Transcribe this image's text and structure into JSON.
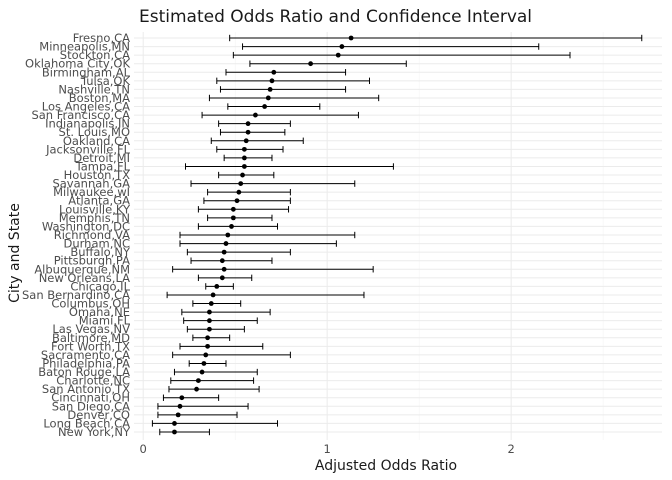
{
  "chart_data": {
    "type": "scatter",
    "title": "Estimated Odds Ratio and Confidence Interval",
    "xlabel": "Adjusted Odds Ratio",
    "ylabel": "City and State",
    "xlim": [
      -0.05,
      2.82
    ],
    "xticks": [
      0,
      1,
      2
    ],
    "xtick_labels": [
      "0",
      "1",
      "2"
    ],
    "grid": true,
    "points": [
      {
        "city": "Fresno,CA",
        "or": 1.13,
        "low": 0.47,
        "high": 2.71
      },
      {
        "city": "Minneapolis,MN",
        "or": 1.08,
        "low": 0.54,
        "high": 2.15
      },
      {
        "city": "Stockton,CA",
        "or": 1.06,
        "low": 0.49,
        "high": 2.32
      },
      {
        "city": "Oklahoma City,OK",
        "or": 0.91,
        "low": 0.58,
        "high": 1.43
      },
      {
        "city": "Birmingham,AL",
        "or": 0.71,
        "low": 0.45,
        "high": 1.1
      },
      {
        "city": "Tulsa,OK",
        "or": 0.7,
        "low": 0.4,
        "high": 1.23
      },
      {
        "city": "Nashville,TN",
        "or": 0.69,
        "low": 0.42,
        "high": 1.1
      },
      {
        "city": "Boston,MA",
        "or": 0.68,
        "low": 0.36,
        "high": 1.28
      },
      {
        "city": "Los Angeles,CA",
        "or": 0.66,
        "low": 0.46,
        "high": 0.96
      },
      {
        "city": "San Francisco,CA",
        "or": 0.61,
        "low": 0.32,
        "high": 1.17
      },
      {
        "city": "Indianapolis,IN",
        "or": 0.57,
        "low": 0.41,
        "high": 0.8
      },
      {
        "city": "St. Louis,MO",
        "or": 0.57,
        "low": 0.42,
        "high": 0.77
      },
      {
        "city": "Oakland,CA",
        "or": 0.56,
        "low": 0.37,
        "high": 0.87
      },
      {
        "city": "Jacksonville,FL",
        "or": 0.55,
        "low": 0.4,
        "high": 0.76
      },
      {
        "city": "Detroit,MI",
        "or": 0.55,
        "low": 0.44,
        "high": 0.7
      },
      {
        "city": "Tampa,FL",
        "or": 0.55,
        "low": 0.23,
        "high": 1.36
      },
      {
        "city": "Houston,TX",
        "or": 0.54,
        "low": 0.41,
        "high": 0.71
      },
      {
        "city": "Savannah,GA",
        "or": 0.53,
        "low": 0.26,
        "high": 1.15
      },
      {
        "city": "Milwaukee,wI",
        "or": 0.52,
        "low": 0.35,
        "high": 0.8
      },
      {
        "city": "Atlanta,GA",
        "or": 0.51,
        "low": 0.33,
        "high": 0.8
      },
      {
        "city": "Louisville,KY",
        "or": 0.49,
        "low": 0.3,
        "high": 0.79
      },
      {
        "city": "Memphis,TN",
        "or": 0.49,
        "low": 0.35,
        "high": 0.7
      },
      {
        "city": "Washington,DC",
        "or": 0.48,
        "low": 0.3,
        "high": 0.73
      },
      {
        "city": "Richmond,VA",
        "or": 0.46,
        "low": 0.2,
        "high": 1.15
      },
      {
        "city": "Durham,NC",
        "or": 0.45,
        "low": 0.2,
        "high": 1.05
      },
      {
        "city": "Buffalo,NY",
        "or": 0.44,
        "low": 0.24,
        "high": 0.8
      },
      {
        "city": "Pittsburgh,PA",
        "or": 0.43,
        "low": 0.26,
        "high": 0.7
      },
      {
        "city": "Albuquerque,NM",
        "or": 0.44,
        "low": 0.16,
        "high": 1.25
      },
      {
        "city": "New Orleans,LA",
        "or": 0.43,
        "low": 0.3,
        "high": 0.59
      },
      {
        "city": "Chicago,IL",
        "or": 0.4,
        "low": 0.34,
        "high": 0.49
      },
      {
        "city": "San Bernardino,CA",
        "or": 0.38,
        "low": 0.13,
        "high": 1.2
      },
      {
        "city": "Columbus,OH",
        "or": 0.37,
        "low": 0.27,
        "high": 0.53
      },
      {
        "city": "Omaha,NE",
        "or": 0.36,
        "low": 0.21,
        "high": 0.69
      },
      {
        "city": "Miami,FL",
        "or": 0.36,
        "low": 0.22,
        "high": 0.62
      },
      {
        "city": "Las Vegas,NV",
        "or": 0.36,
        "low": 0.24,
        "high": 0.55
      },
      {
        "city": "Baltimore,MD",
        "or": 0.35,
        "low": 0.27,
        "high": 0.47
      },
      {
        "city": "Fort Worth,TX",
        "or": 0.35,
        "low": 0.2,
        "high": 0.65
      },
      {
        "city": "Sacramento,CA",
        "or": 0.34,
        "low": 0.16,
        "high": 0.8
      },
      {
        "city": "Philadelphia,PA",
        "or": 0.33,
        "low": 0.25,
        "high": 0.45
      },
      {
        "city": "Baton Rouge,LA",
        "or": 0.32,
        "low": 0.17,
        "high": 0.62
      },
      {
        "city": "Charlotte,NC",
        "or": 0.3,
        "low": 0.15,
        "high": 0.6
      },
      {
        "city": "San Antonio,TX",
        "or": 0.29,
        "low": 0.14,
        "high": 0.63
      },
      {
        "city": "Cincinnati,OH",
        "or": 0.21,
        "low": 0.11,
        "high": 0.41
      },
      {
        "city": "San Diego,CA",
        "or": 0.2,
        "low": 0.08,
        "high": 0.57
      },
      {
        "city": "Denver,CO",
        "or": 0.19,
        "low": 0.08,
        "high": 0.51
      },
      {
        "city": "Long Beach,CA",
        "or": 0.17,
        "low": 0.05,
        "high": 0.73
      },
      {
        "city": "New York,NY",
        "or": 0.17,
        "low": 0.09,
        "high": 0.36
      }
    ]
  }
}
